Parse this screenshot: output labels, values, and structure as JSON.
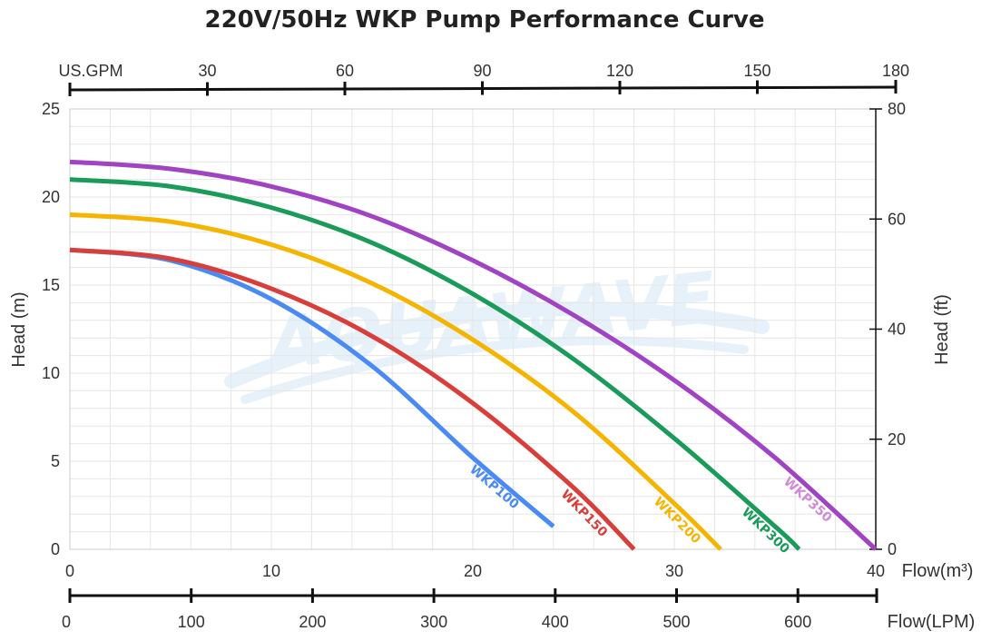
{
  "chart_data": {
    "type": "line",
    "title": "220V/50Hz WKP Pump Performance Curve",
    "watermark": "AQUAWAVE",
    "x_axis_bottom": {
      "label": "Flow(m³)",
      "range": [
        0,
        40
      ],
      "ticks": [
        "0",
        "10",
        "20",
        "30",
        "40"
      ]
    },
    "x_axis_lpm": {
      "label": "Flow(LPM)",
      "range": [
        0,
        666.7
      ],
      "ticks": [
        "0",
        "100",
        "200",
        "300",
        "400",
        "500",
        "600"
      ]
    },
    "x_axis_top": {
      "label": "US.GPM",
      "range": [
        0,
        180
      ],
      "ticks": [
        "30",
        "60",
        "90",
        "120",
        "150",
        "180"
      ]
    },
    "y_axis_left": {
      "label": "Head (m)",
      "range": [
        0,
        25
      ],
      "ticks": [
        "0",
        "5",
        "10",
        "15",
        "20",
        "25"
      ]
    },
    "y_axis_right": {
      "label": "Head (ft)",
      "range": [
        0,
        80
      ],
      "ticks": [
        "0",
        "20",
        "40",
        "60",
        "80"
      ]
    },
    "grid": true,
    "series": [
      {
        "name": "WKP100",
        "color": "#4a8af4",
        "label_color": "#4a8af4",
        "x": [
          0,
          5,
          10,
          15,
          20,
          24
        ],
        "y": [
          17,
          16.4,
          14.2,
          10.4,
          5.2,
          1.3
        ]
      },
      {
        "name": "WKP150",
        "color": "#d93f3a",
        "label_color": "#d93f3a",
        "x": [
          0,
          5,
          10,
          15,
          20,
          25,
          28
        ],
        "y": [
          17,
          16.5,
          14.8,
          12.1,
          8.3,
          3.5,
          0
        ]
      },
      {
        "name": "WKP200",
        "color": "#f4b400",
        "label_color": "#f4b400",
        "x": [
          0,
          5,
          10,
          15,
          20,
          25,
          30,
          32.3
        ],
        "y": [
          19,
          18.6,
          17.3,
          15.1,
          11.9,
          7.8,
          2.6,
          0
        ]
      },
      {
        "name": "WKP300",
        "color": "#1a9b5a",
        "label_color": "#1a9b5a",
        "x": [
          0,
          5,
          10,
          15,
          20,
          25,
          30,
          35,
          36.2
        ],
        "y": [
          21,
          20.6,
          19.4,
          17.4,
          14.5,
          10.8,
          6.3,
          1.3,
          0
        ]
      },
      {
        "name": "WKP350",
        "color": "#a044c4",
        "label_color": "#d08ad8",
        "x": [
          0,
          5,
          10,
          15,
          20,
          25,
          30,
          35,
          40
        ],
        "y": [
          22,
          21.6,
          20.6,
          18.9,
          16.4,
          13.3,
          9.6,
          5.2,
          0
        ]
      }
    ]
  }
}
